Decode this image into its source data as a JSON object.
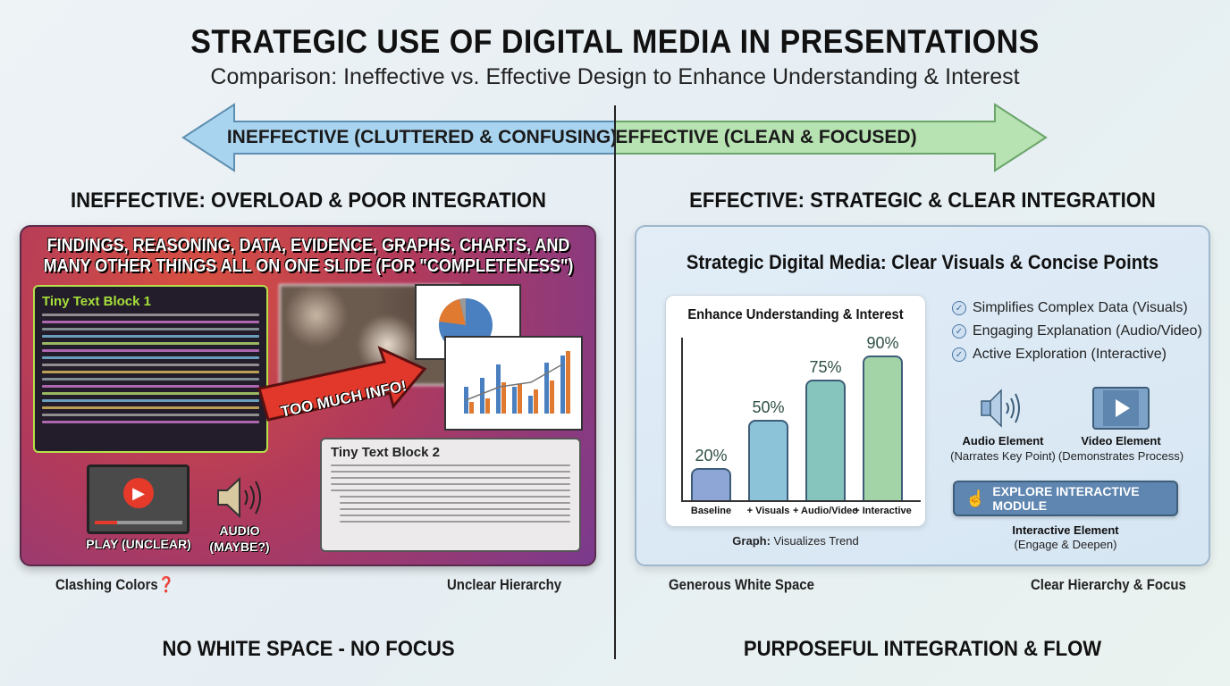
{
  "title": "STRATEGIC USE OF DIGITAL MEDIA IN PRESENTATIONS",
  "subtitle": "Comparison: Ineffective vs. Effective Design to Enhance Understanding & Interest",
  "arrow": {
    "left_label": "INEFFECTIVE (CLUTTERED & CONFUSING)",
    "right_label": "EFFECTIVE (CLEAN & FOCUSED)",
    "left_color": "#a9d4ef",
    "right_color": "#b7e2b2"
  },
  "left": {
    "heading": "INEFFECTIVE: OVERLOAD & POOR INTEGRATION",
    "slide_title_line1": "FINDINGS, REASONING, DATA, EVIDENCE, GRAPHS, CHARTS, AND",
    "slide_title_line2": "MANY OTHER THINGS ALL ON ONE SLIDE (FOR \"COMPLETENESS\")",
    "text_block_1": "Tiny Text Block 1",
    "text_block_2": "Tiny Text Block 2",
    "callout": "TOO MUCH INFO!",
    "video_label": "PLAY (UNCLEAR)",
    "audio_label_1": "AUDIO",
    "audio_label_2": "(MAYBE?)",
    "note_left": "Clashing Colors❓",
    "note_right": "Unclear Hierarchy",
    "footer": "NO WHITE SPACE - NO FOCUS"
  },
  "right": {
    "heading": "EFFECTIVE: STRATEGIC & CLEAR INTEGRATION",
    "slide_title": "Strategic Digital Media: Clear Visuals & Concise Points",
    "checklist": [
      "Simplifies Complex Data (Visuals)",
      "Engaging Explanation (Audio/Video)",
      "Active Exploration (Interactive)"
    ],
    "audio_title": "Audio Element",
    "audio_sub": "(Narrates Key Point)",
    "video_title": "Video Element",
    "video_sub": "(Demonstrates Process)",
    "button": "EXPLORE INTERACTIVE MODULE",
    "interactive_title": "Interactive Element",
    "interactive_sub": "(Engage & Deepen)",
    "graph_caption_bold": "Graph:",
    "graph_caption": " Visualizes Trend",
    "note_left": "Generous White Space",
    "note_right": "Clear Hierarchy & Focus",
    "footer": "PURPOSEFUL INTEGRATION & FLOW"
  },
  "chart_data": {
    "type": "bar",
    "title": "Enhance Understanding & Interest",
    "categories": [
      "Baseline",
      "+ Visuals",
      "+ Audio/Video",
      "+ Interactive"
    ],
    "values": [
      20,
      50,
      75,
      90
    ],
    "labels": [
      "20%",
      "50%",
      "75%",
      "90%"
    ],
    "colors": [
      "#8ea6d6",
      "#8cc3d8",
      "#86c5bd",
      "#a3d4a8"
    ]
  }
}
